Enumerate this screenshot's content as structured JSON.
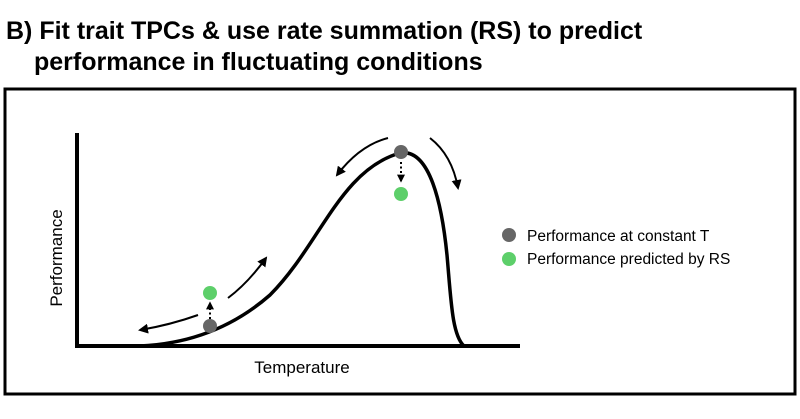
{
  "title": {
    "line1": "B) Fit trait TPCs & use rate summation (RS) to predict",
    "line2": "performance in fluctuating conditions"
  },
  "axes": {
    "xlabel": "Temperature",
    "ylabel": "Performance"
  },
  "legend": {
    "items": [
      {
        "label": "Performance at constant T",
        "color": "#666666"
      },
      {
        "label": "Performance predicted by RS",
        "color": "#5dcf6a"
      }
    ]
  },
  "colors": {
    "constant": "#666666",
    "predicted": "#5dcf6a",
    "curve": "#000000",
    "frame": "#000000"
  }
}
